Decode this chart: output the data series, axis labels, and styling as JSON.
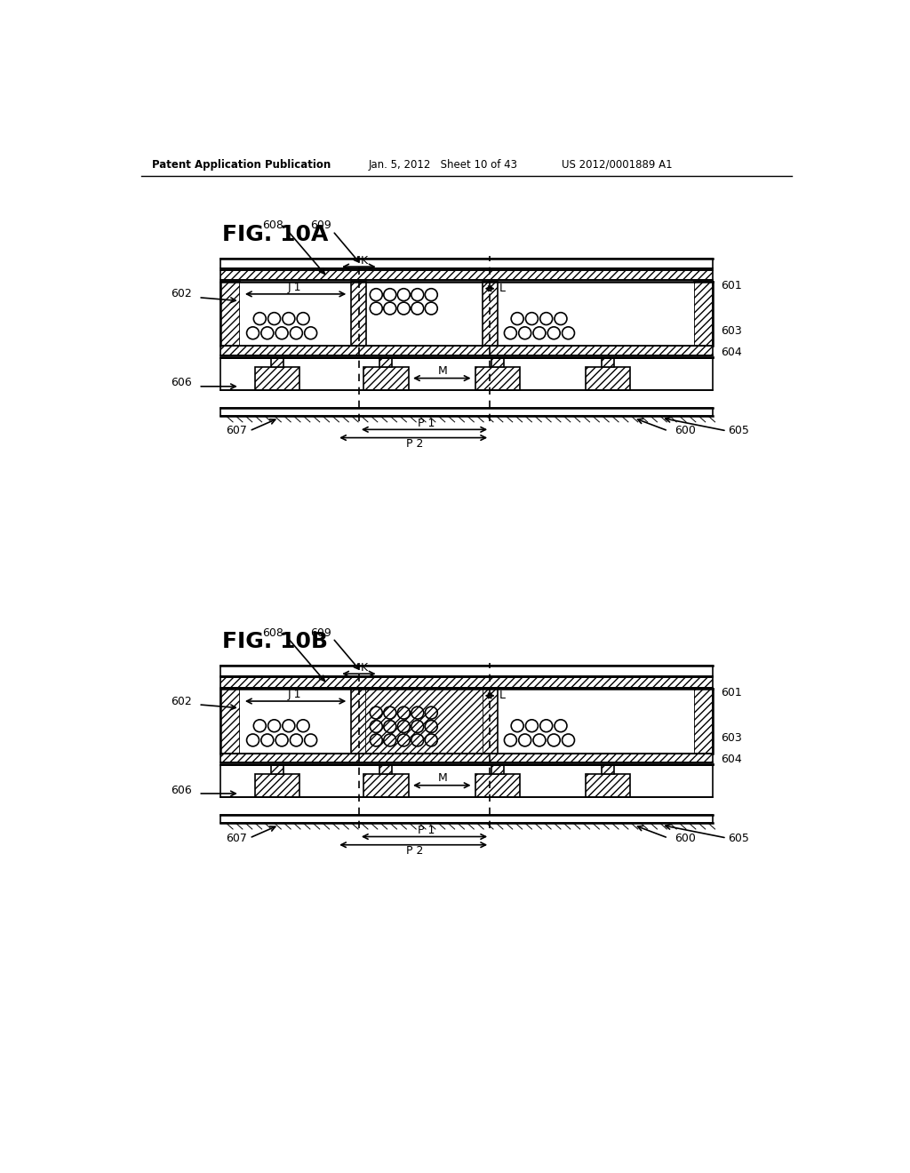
{
  "header_left": "Patent Application Publication",
  "header_mid": "Jan. 5, 2012   Sheet 10 of 43",
  "header_right": "US 2012/0001889 A1",
  "fig_a_label": "FIG. 10A",
  "fig_b_label": "FIG. 10B",
  "background_color": "#ffffff",
  "line_color": "#000000"
}
